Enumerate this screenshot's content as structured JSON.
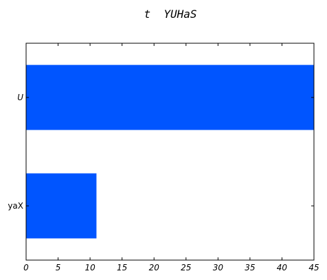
{
  "chart_data": {
    "type": "bar",
    "orientation": "horizontal",
    "title": "t  YUHaS",
    "xlabel": "",
    "ylabel": "",
    "categories": [
      "U",
      "yaX"
    ],
    "values": [
      45,
      11
    ],
    "xlim": [
      0,
      45
    ],
    "x_ticks": [
      0,
      5,
      10,
      15,
      20,
      25,
      30,
      35,
      40,
      45
    ],
    "grid": false,
    "bar_color": "#0055ff"
  }
}
